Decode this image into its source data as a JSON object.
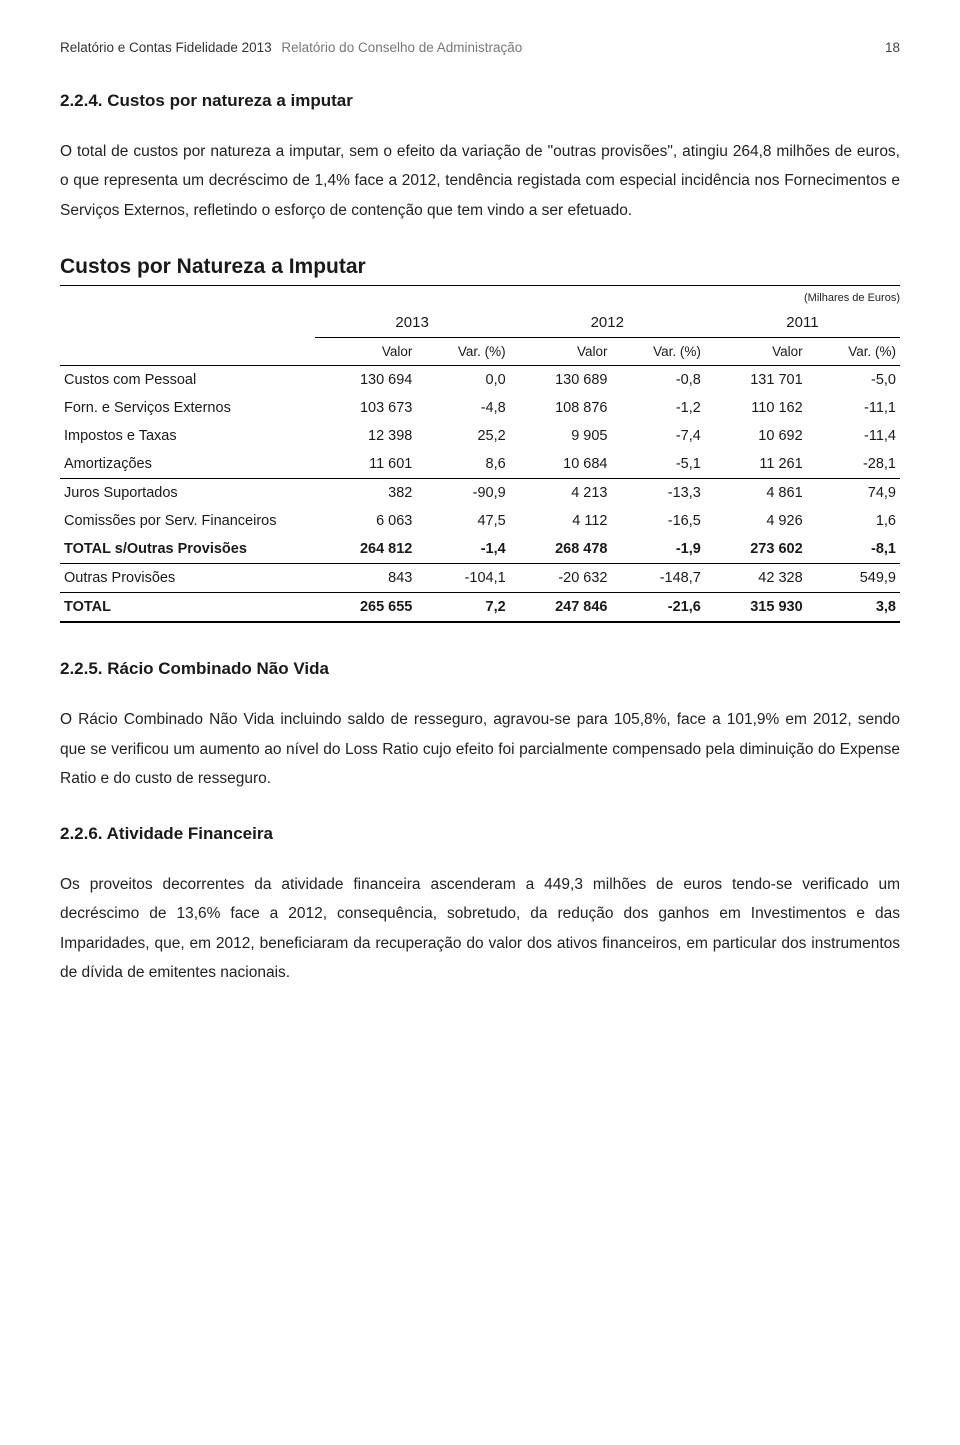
{
  "header": {
    "left": "Relatório e Contas Fidelidade 2013",
    "right": "Relatório do Conselho de Administração",
    "page_number": "18"
  },
  "section_224": {
    "heading": "2.2.4. Custos por natureza a imputar",
    "paragraph": "O total de custos por natureza a imputar, sem o efeito da variação de \"outras provisões\", atingiu 264,8 milhões de euros, o que representa um decréscimo de 1,4% face a 2012, tendência registada com especial incidência nos Fornecimentos e Serviços Externos, refletindo o esforço de contenção que tem vindo a ser efetuado."
  },
  "table": {
    "title": "Custos por Natureza a Imputar",
    "unit": "(Milhares de Euros)",
    "years": [
      "2013",
      "2012",
      "2011"
    ],
    "subheaders": [
      "Valor",
      "Var. (%)",
      "Valor",
      "Var. (%)",
      "Valor",
      "Var. (%)"
    ],
    "rows": [
      {
        "label": "Custos com Pessoal",
        "cells": [
          "130 694",
          "0,0",
          "130 689",
          "-0,8",
          "131 701",
          "-5,0"
        ],
        "sep": false,
        "bold": false
      },
      {
        "label": "Forn. e Serviços Externos",
        "cells": [
          "103 673",
          "-4,8",
          "108 876",
          "-1,2",
          "110 162",
          "-11,1"
        ],
        "sep": false,
        "bold": false
      },
      {
        "label": "Impostos e Taxas",
        "cells": [
          "12 398",
          "25,2",
          "9 905",
          "-7,4",
          "10 692",
          "-11,4"
        ],
        "sep": false,
        "bold": false
      },
      {
        "label": "Amortizações",
        "cells": [
          "11 601",
          "8,6",
          "10 684",
          "-5,1",
          "11 261",
          "-28,1"
        ],
        "sep": true,
        "bold": false
      },
      {
        "label": "Juros Suportados",
        "cells": [
          "382",
          "-90,9",
          "4 213",
          "-13,3",
          "4 861",
          "74,9"
        ],
        "sep": false,
        "bold": false
      },
      {
        "label": "Comissões por Serv. Financeiros",
        "cells": [
          "6 063",
          "47,5",
          "4 112",
          "-16,5",
          "4 926",
          "1,6"
        ],
        "sep": false,
        "bold": false
      },
      {
        "label": "TOTAL s/Outras Provisões",
        "cells": [
          "264 812",
          "-1,4",
          "268 478",
          "-1,9",
          "273 602",
          "-8,1"
        ],
        "sep": true,
        "bold": true
      },
      {
        "label": "Outras Provisões",
        "cells": [
          "843",
          "-104,1",
          "-20 632",
          "-148,7",
          "42 328",
          "549,9"
        ],
        "sep": false,
        "bold": false
      }
    ],
    "total": {
      "label": "TOTAL",
      "cells": [
        "265 655",
        "7,2",
        "247 846",
        "-21,6",
        "315 930",
        "3,8"
      ]
    }
  },
  "section_225": {
    "heading": "2.2.5. Rácio Combinado Não Vida",
    "paragraph": "O Rácio Combinado Não Vida incluindo saldo de resseguro, agravou-se para 105,8%, face a 101,9% em 2012, sendo que se verificou um aumento ao nível do Loss Ratio cujo efeito foi parcialmente compensado pela diminuição do Expense Ratio e do custo de resseguro."
  },
  "section_226": {
    "heading": "2.2.6. Atividade Financeira",
    "paragraph": "Os proveitos decorrentes da atividade financeira ascenderam a 449,3 milhões de euros tendo-se verificado um decréscimo de 13,6% face a 2012, consequência, sobretudo, da redução dos ganhos em Investimentos e das Imparidades, que, em 2012, beneficiaram da recuperação do valor dos ativos financeiros, em particular dos instrumentos de dívida de emitentes nacionais."
  }
}
